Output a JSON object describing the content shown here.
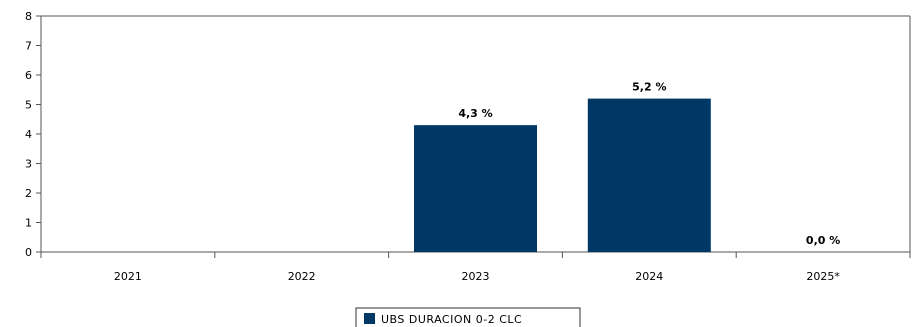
{
  "chart_data": {
    "type": "bar",
    "categories": [
      "2021",
      "2022",
      "2023",
      "2024",
      "2025*"
    ],
    "series": [
      {
        "name": "UBS DURACION 0-2 CLC",
        "values": [
          null,
          null,
          4.3,
          5.2,
          0.0
        ],
        "labels": [
          "",
          "",
          "4,3 %",
          "5,2 %",
          "0,0 %"
        ]
      }
    ],
    "yticks": [
      "0",
      "1",
      "2",
      "3",
      "4",
      "5",
      "6",
      "7",
      "8"
    ],
    "ylim": [
      0,
      8
    ],
    "grid": false,
    "legend": "bottom-center",
    "colors": {
      "bar": "#003865",
      "axis": "#555555"
    }
  }
}
